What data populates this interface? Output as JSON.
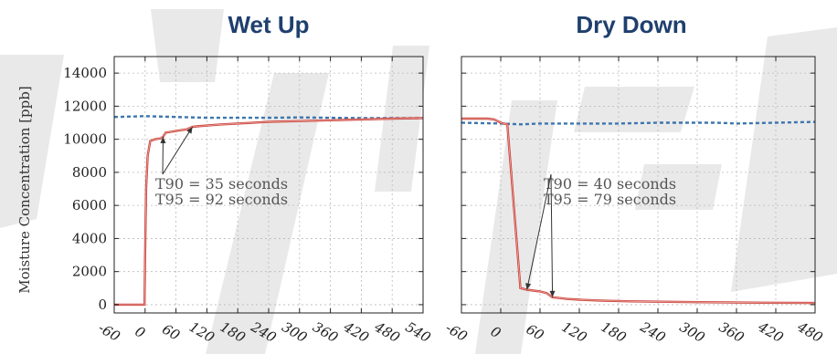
{
  "chart_data": [
    {
      "type": "line",
      "title": "Wet Up",
      "ylabel": "Moisture Concentration [ppb]",
      "xlabel": "",
      "xlim": [
        -60,
        540
      ],
      "ylim": [
        -500,
        15000
      ],
      "xticks": [
        -60,
        0,
        60,
        120,
        180,
        240,
        300,
        360,
        420,
        480,
        540
      ],
      "yticks": [
        0,
        2000,
        4000,
        6000,
        8000,
        10000,
        12000,
        14000
      ],
      "grid": true,
      "series": [
        {
          "style": "dashed",
          "color": "#3c76ae",
          "x": [
            -60,
            0,
            60,
            120,
            180,
            240,
            300,
            360,
            420,
            480,
            540
          ],
          "y": [
            11350,
            11400,
            11350,
            11300,
            11300,
            11300,
            11320,
            11300,
            11280,
            11280,
            11280
          ]
        },
        {
          "style": "solid",
          "color": "#c8413a",
          "x": [
            -60,
            -1,
            0,
            2,
            5,
            10,
            20,
            30,
            35,
            40,
            50,
            60,
            70,
            80,
            92,
            100,
            120,
            150,
            180,
            240,
            300,
            360,
            420,
            480,
            540
          ],
          "y": [
            0,
            0,
            3000,
            7000,
            9000,
            9900,
            10000,
            10050,
            10150,
            10400,
            10450,
            10500,
            10550,
            10600,
            10750,
            10780,
            10830,
            10900,
            10950,
            11050,
            11100,
            11150,
            11200,
            11250,
            11280
          ]
        }
      ],
      "annotations": [
        {
          "text": "T90 = 35 seconds",
          "points_to": [
            35,
            10150
          ]
        },
        {
          "text": "T95 = 92 seconds",
          "points_to": [
            92,
            10750
          ]
        }
      ]
    },
    {
      "type": "line",
      "title": "Dry Down",
      "xlabel": "",
      "xlim": [
        -60,
        480
      ],
      "ylim": [
        -500,
        15000
      ],
      "xticks": [
        -60,
        0,
        60,
        120,
        180,
        240,
        300,
        360,
        420,
        480
      ],
      "yticks": [
        0,
        2000,
        4000,
        6000,
        8000,
        10000,
        12000,
        14000
      ],
      "grid": true,
      "series": [
        {
          "style": "dashed",
          "color": "#3c76ae",
          "x": [
            -60,
            0,
            30,
            60,
            120,
            180,
            240,
            300,
            330,
            360,
            420,
            480
          ],
          "y": [
            11000,
            10950,
            10900,
            10950,
            10950,
            10950,
            11000,
            11000,
            11000,
            10950,
            11000,
            11050
          ]
        },
        {
          "style": "solid",
          "color": "#c8413a",
          "x": [
            -60,
            -20,
            -10,
            0,
            10,
            20,
            30,
            40,
            50,
            60,
            70,
            79,
            90,
            100,
            120,
            150,
            200,
            300,
            400,
            480
          ],
          "y": [
            11250,
            11250,
            11200,
            11000,
            10900,
            6000,
            1000,
            900,
            850,
            800,
            700,
            450,
            400,
            350,
            300,
            250,
            200,
            150,
            120,
            100
          ]
        }
      ],
      "annotations": [
        {
          "text": "T90 = 40 seconds",
          "points_to": [
            40,
            900
          ]
        },
        {
          "text": "T95 = 79 seconds",
          "points_to": [
            79,
            450
          ]
        }
      ]
    }
  ]
}
